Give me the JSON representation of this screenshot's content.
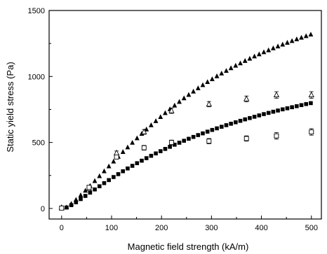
{
  "chart_data": {
    "type": "scatter",
    "xlabel": "Magnetic field strength (kA/m)",
    "ylabel": "Static yield stress (Pa)",
    "xlim": [
      -25,
      520
    ],
    "ylim": [
      -80,
      1500
    ],
    "xticks": [
      0,
      100,
      200,
      300,
      400,
      500
    ],
    "yticks": [
      0,
      500,
      1000,
      1500
    ],
    "xtick_labels": [
      "0",
      "100",
      "200",
      "300",
      "400",
      "500"
    ],
    "ytick_labels": [
      "0",
      "500",
      "1000",
      "1500"
    ],
    "grid": false,
    "legend": "none",
    "series": [
      {
        "marker": "filled-triangle",
        "color": "#000000",
        "x": [
          10,
          19.4,
          28.8,
          38.2,
          47.6,
          57,
          66.4,
          75.8,
          85.2,
          94.6,
          104,
          113.4,
          122.8,
          132.2,
          141.6,
          151,
          160.4,
          169.8,
          179.2,
          188.6,
          198,
          207.4,
          216.8,
          226.2,
          235.6,
          245,
          254.4,
          263.8,
          273.2,
          282.6,
          292,
          301.4,
          310.8,
          320.2,
          329.6,
          339,
          348.4,
          357.8,
          367.2,
          376.6,
          386,
          395.4,
          404.8,
          414.2,
          423.6,
          433,
          442.4,
          451.8,
          461.2,
          470.6,
          480,
          489.4,
          498.8
        ],
        "y": [
          9,
          35,
          66,
          100,
          135,
          171,
          208,
          245,
          282,
          319,
          356,
          392,
          428,
          463,
          498,
          532,
          566,
          599,
          631,
          662,
          693,
          723,
          752,
          780,
          808,
          835,
          861,
          886,
          911,
          935,
          958,
          980,
          1002,
          1023,
          1043,
          1063,
          1082,
          1100,
          1118,
          1135,
          1152,
          1168,
          1184,
          1199,
          1214,
          1228,
          1242,
          1256,
          1269,
          1282,
          1294,
          1306,
          1318
        ]
      },
      {
        "marker": "filled-square",
        "color": "#000000",
        "x": [
          10,
          19.4,
          28.8,
          38.2,
          47.6,
          57,
          66.4,
          75.8,
          85.2,
          94.6,
          104,
          113.4,
          122.8,
          132.2,
          141.6,
          151,
          160.4,
          169.8,
          179.2,
          188.6,
          198,
          207.4,
          216.8,
          226.2,
          235.6,
          245,
          254.4,
          263.8,
          273.2,
          282.6,
          292,
          301.4,
          310.8,
          320.2,
          329.6,
          339,
          348.4,
          357.8,
          367.2,
          376.6,
          386,
          395.4,
          404.8,
          414.2,
          423.6,
          433,
          442.4,
          451.8,
          461.2,
          470.6,
          480,
          489.4,
          498.8
        ],
        "y": [
          7,
          25,
          47,
          71,
          95,
          120,
          144,
          168,
          192,
          215,
          238,
          260,
          282,
          303,
          323,
          343,
          362,
          381,
          399,
          417,
          434,
          451,
          467,
          483,
          498,
          513,
          528,
          542,
          556,
          569,
          582,
          595,
          607,
          619,
          631,
          642,
          653,
          664,
          675,
          685,
          695,
          705,
          715,
          724,
          733,
          742,
          751,
          759,
          767,
          775,
          783,
          791,
          798
        ]
      },
      {
        "marker": "open-triangle",
        "color": "#000000",
        "error_bars": true,
        "x": [
          0,
          55,
          110,
          165,
          220,
          295,
          370,
          430,
          500
        ],
        "y": [
          5,
          150,
          420,
          580,
          740,
          790,
          830,
          860,
          860
        ],
        "err": [
          5,
          10,
          15,
          18,
          20,
          20,
          22,
          25,
          25
        ]
      },
      {
        "marker": "open-square",
        "color": "#000000",
        "error_bars": true,
        "x": [
          0,
          55,
          110,
          165,
          220,
          295,
          370,
          430,
          500
        ],
        "y": [
          3,
          160,
          390,
          460,
          500,
          510,
          530,
          550,
          580
        ],
        "err": [
          4,
          12,
          15,
          18,
          18,
          20,
          20,
          25,
          25
        ]
      }
    ]
  }
}
